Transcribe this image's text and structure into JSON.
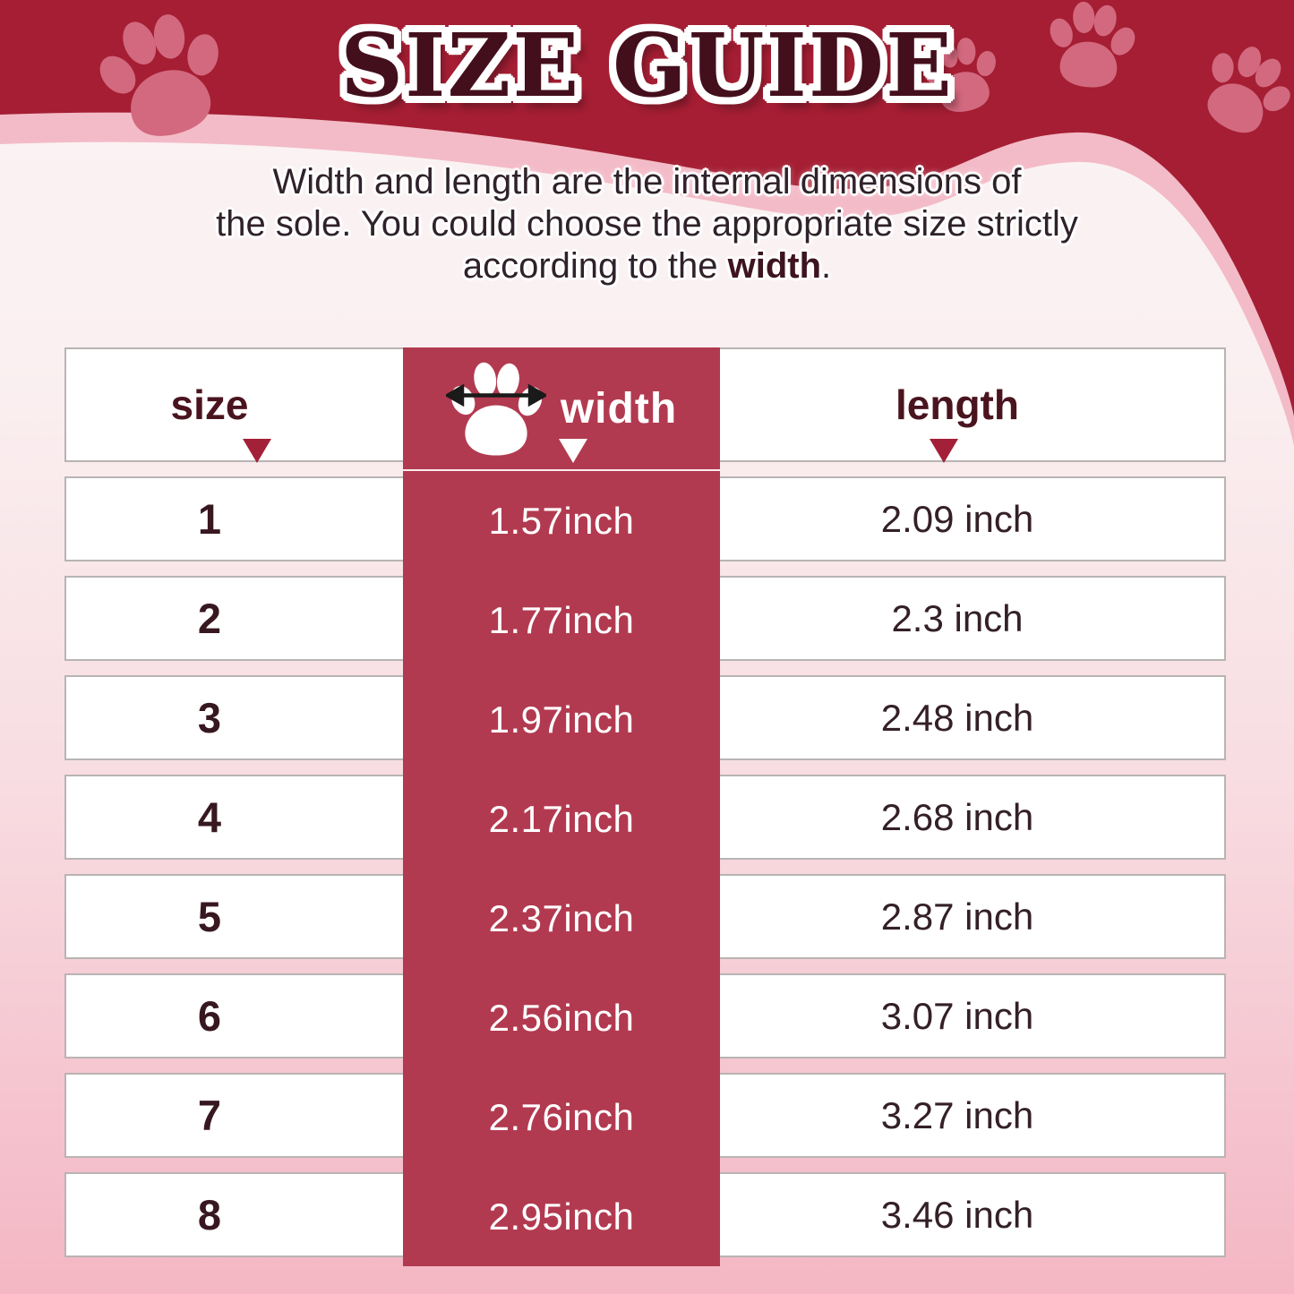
{
  "header": {
    "title": "SIZE GUIDE"
  },
  "subtitle": {
    "line1": "Width and length are the internal dimensions of",
    "line2": "the sole. You could choose the appropriate size strictly",
    "line3_prefix": "according to the ",
    "line3_bold": "width",
    "line3_suffix": "."
  },
  "table": {
    "columns": {
      "size": "size",
      "width": "width",
      "length": "length"
    }
  },
  "icons": {
    "paw_decoration": "paw-print-icon",
    "width_measure": "paw-with-double-arrow-icon",
    "sort_marker": "down-triangle-icon"
  },
  "colors": {
    "banner_red": "#a51e33",
    "column_red": "#b23a50",
    "stripe_pink": "#f3bbc7",
    "paw_pink": "#d2697f",
    "page_bottom_pink": "#f4b7c3",
    "title_maroon": "#440f1d",
    "text_dark": "#30222a",
    "triangle_red": "#a32138"
  },
  "chart_data": {
    "type": "table",
    "title": "SIZE GUIDE",
    "columns": [
      "size",
      "width",
      "length"
    ],
    "rows": [
      {
        "size": "1",
        "width": "1.57inch",
        "length": "2.09 inch"
      },
      {
        "size": "2",
        "width": "1.77inch",
        "length": "2.3 inch"
      },
      {
        "size": "3",
        "width": "1.97inch",
        "length": "2.48 inch"
      },
      {
        "size": "4",
        "width": "2.17inch",
        "length": "2.68 inch"
      },
      {
        "size": "5",
        "width": "2.37inch",
        "length": "2.87 inch"
      },
      {
        "size": "6",
        "width": "2.56inch",
        "length": "3.07 inch"
      },
      {
        "size": "7",
        "width": "2.76inch",
        "length": "3.27 inch"
      },
      {
        "size": "8",
        "width": "2.95inch",
        "length": "3.46 inch"
      }
    ]
  }
}
